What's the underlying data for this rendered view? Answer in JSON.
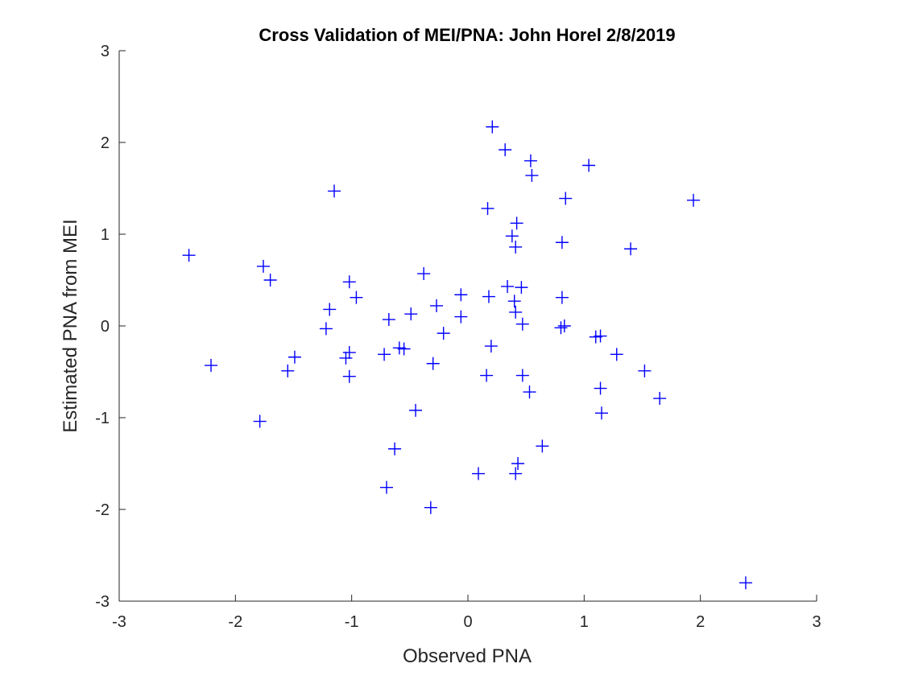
{
  "chart_data": {
    "type": "scatter",
    "title": "Cross Validation of MEI/PNA: John Horel 2/8/2019",
    "xlabel": "Observed PNA",
    "ylabel": "Estimated PNA from MEI",
    "xlim": [
      -3,
      3
    ],
    "ylim": [
      -3,
      3
    ],
    "xticks": [
      -3,
      -2,
      -1,
      0,
      1,
      2,
      3
    ],
    "yticks": [
      -3,
      -2,
      -1,
      0,
      1,
      2,
      3
    ],
    "xtick_labels": [
      "-3",
      "-2",
      "-1",
      "0",
      "1",
      "2",
      "3"
    ],
    "ytick_labels": [
      "-3",
      "-2",
      "-1",
      "0",
      "1",
      "2",
      "3"
    ],
    "grid": false,
    "box": false,
    "marker": "plus",
    "color": "#0000ff",
    "x": [
      0.21,
      0.32,
      0.54,
      0.55,
      1.04,
      0.84,
      1.94,
      0.17,
      0.42,
      0.38,
      0.41,
      0.81,
      1.4,
      -1.15,
      -2.4,
      -1.76,
      -1.7,
      -0.38,
      -1.02,
      -0.96,
      -0.06,
      0.34,
      0.46,
      0.18,
      0.4,
      0.41,
      0.81,
      -1.19,
      -0.27,
      -0.49,
      -0.06,
      -0.68,
      -1.22,
      -0.21,
      0.47,
      0.8,
      0.83,
      1.1,
      1.14,
      -1.02,
      -1.05,
      -0.72,
      -0.59,
      -0.55,
      0.2,
      -1.49,
      -0.3,
      -2.21,
      -1.55,
      -1.02,
      0.16,
      0.47,
      1.28,
      1.52,
      1.14,
      0.53,
      1.65,
      1.15,
      -0.45,
      -1.79,
      -0.63,
      0.64,
      0.43,
      0.09,
      0.41,
      -0.7,
      -0.32,
      2.39
    ],
    "y": [
      2.17,
      1.92,
      1.8,
      1.64,
      1.75,
      1.39,
      1.37,
      1.28,
      1.12,
      0.98,
      0.86,
      0.91,
      0.84,
      1.47,
      0.77,
      0.65,
      0.5,
      0.57,
      0.48,
      0.31,
      0.34,
      0.43,
      0.42,
      0.32,
      0.27,
      0.15,
      0.31,
      0.18,
      0.22,
      0.13,
      0.1,
      0.07,
      -0.03,
      -0.08,
      0.02,
      -0.02,
      0.0,
      -0.12,
      -0.11,
      -0.29,
      -0.35,
      -0.31,
      -0.24,
      -0.25,
      -0.22,
      -0.34,
      -0.41,
      -0.43,
      -0.49,
      -0.55,
      -0.54,
      -0.54,
      -0.31,
      -0.49,
      -0.68,
      -0.72,
      -0.79,
      -0.95,
      -0.92,
      -1.04,
      -1.34,
      -1.31,
      -1.5,
      -1.61,
      -1.61,
      -1.76,
      -1.98,
      -2.8
    ]
  }
}
